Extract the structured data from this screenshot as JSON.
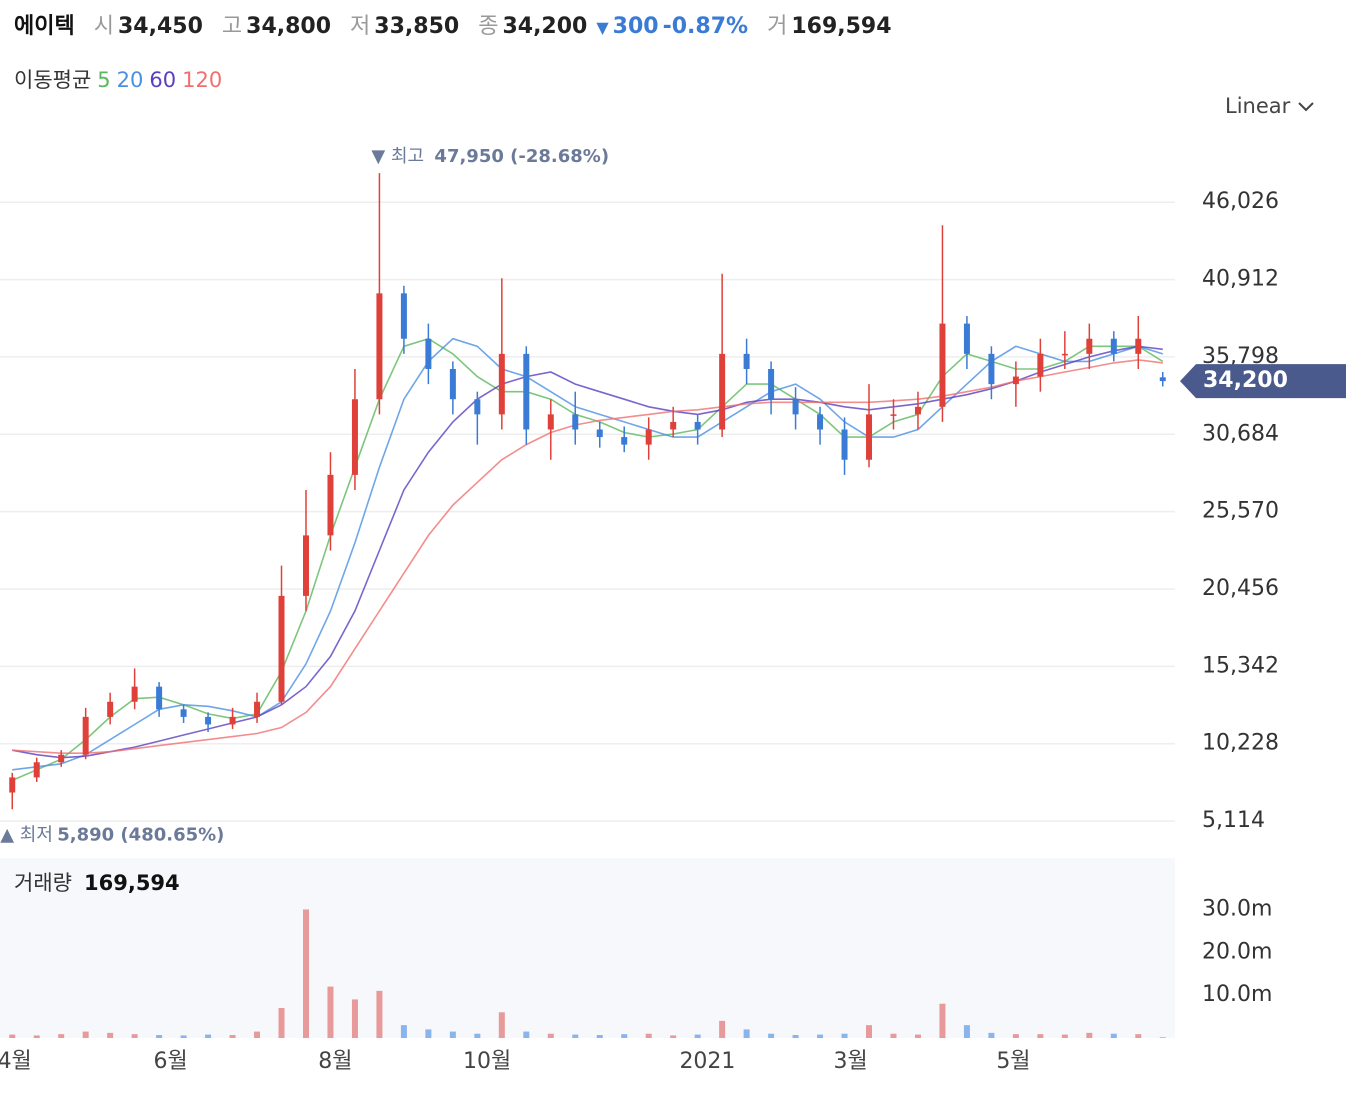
{
  "header": {
    "name": "에이텍",
    "items": [
      {
        "label": "시",
        "value": "34,450"
      },
      {
        "label": "고",
        "value": "34,800"
      },
      {
        "label": "저",
        "value": "33,850"
      },
      {
        "label": "종",
        "value": "34,200"
      }
    ],
    "change_arrow": "▼",
    "change": "300",
    "change_pct": "-0.87%",
    "volume_label": "거",
    "volume": "169,594"
  },
  "ma_legend": {
    "title": "이동평균",
    "periods": [
      "5",
      "20",
      "60",
      "120"
    ]
  },
  "scale_menu": "Linear",
  "chart_data": [
    {
      "type": "candlestick",
      "up_color": "#e0403a",
      "down_color": "#3a7bd5",
      "xlim": [
        0,
        48
      ],
      "xticks": [
        {
          "value": 0.6,
          "label": "4월"
        },
        {
          "value": 6.97,
          "label": "6월"
        },
        {
          "value": 13.7,
          "label": "8월"
        },
        {
          "value": 19.9,
          "label": "10월"
        },
        {
          "value": 28.9,
          "label": "2021"
        },
        {
          "value": 34.75,
          "label": "3월"
        },
        {
          "value": 41.4,
          "label": "5월"
        }
      ],
      "ylim": [
        3200,
        50800
      ],
      "yticks": [
        {
          "value": 5114,
          "label": "5,114"
        },
        {
          "value": 10228,
          "label": "10,228"
        },
        {
          "value": 15342,
          "label": "15,342"
        },
        {
          "value": 20456,
          "label": "20,456"
        },
        {
          "value": 25570,
          "label": "25,570"
        },
        {
          "value": 30684,
          "label": "30,684"
        },
        {
          "value": 35798,
          "label": "35,798"
        },
        {
          "value": 40912,
          "label": "40,912"
        },
        {
          "value": 46026,
          "label": "46,026"
        }
      ],
      "grid": true,
      "open": [
        7000,
        8000,
        9000,
        9500,
        12000,
        13000,
        14000,
        12500,
        12000,
        11500,
        12000,
        13000,
        20000,
        24000,
        28000,
        33000,
        40000,
        37000,
        35000,
        33000,
        32000,
        36000,
        31000,
        32000,
        31000,
        30500,
        30000,
        31000,
        31500,
        31000,
        36000,
        35000,
        33000,
        32000,
        31000,
        29000,
        32000,
        32000,
        32500,
        38000,
        36000,
        34000,
        34500,
        36000,
        36000,
        37000,
        36000,
        34450
      ],
      "high": [
        8300,
        9300,
        9800,
        12600,
        13600,
        15200,
        14300,
        12800,
        12300,
        12600,
        13600,
        22000,
        27000,
        29500,
        35000,
        47950,
        40500,
        38000,
        35500,
        33500,
        41000,
        36500,
        33000,
        33500,
        31500,
        31200,
        31800,
        32500,
        32000,
        41300,
        37000,
        35500,
        33800,
        32500,
        31800,
        34000,
        33000,
        33500,
        44500,
        38500,
        36500,
        35500,
        37000,
        37500,
        38000,
        37500,
        38500,
        34800
      ],
      "low": [
        5890,
        7700,
        8700,
        9200,
        11500,
        12500,
        12000,
        11600,
        11000,
        11200,
        11600,
        12800,
        19000,
        23000,
        27000,
        32000,
        36000,
        34000,
        32000,
        30000,
        31000,
        30000,
        29000,
        30000,
        29800,
        29500,
        29000,
        30500,
        30000,
        30500,
        34000,
        32000,
        31000,
        30000,
        28000,
        28500,
        31000,
        31000,
        31500,
        35000,
        33000,
        32500,
        33500,
        35000,
        35000,
        35500,
        35000,
        33850
      ],
      "close": [
        8000,
        9000,
        9500,
        12000,
        13000,
        14000,
        12500,
        12000,
        11500,
        12000,
        13000,
        20000,
        24000,
        28000,
        33000,
        40000,
        37000,
        35000,
        33000,
        32000,
        36000,
        31000,
        32000,
        31000,
        30500,
        30000,
        31000,
        31500,
        31000,
        36000,
        35000,
        33000,
        32000,
        31000,
        29000,
        32000,
        32000,
        32500,
        38000,
        36000,
        34000,
        34500,
        36000,
        36000,
        37000,
        36000,
        37000,
        34200
      ],
      "series": [
        {
          "name": "5",
          "color": "#5cb85c",
          "values": [
            7800,
            8500,
            9200,
            10500,
            12000,
            13200,
            13300,
            12800,
            12200,
            11900,
            12200,
            15000,
            19000,
            24000,
            28500,
            33000,
            36500,
            37000,
            36000,
            34500,
            33500,
            33500,
            33000,
            32000,
            31500,
            30800,
            30500,
            30700,
            31000,
            32500,
            34000,
            34000,
            33000,
            32000,
            30500,
            30500,
            31500,
            32000,
            34500,
            36000,
            35500,
            35000,
            35000,
            35500,
            36500,
            36500,
            36500,
            35500
          ]
        },
        {
          "name": "20",
          "color": "#4a90e2",
          "values": [
            8500,
            8700,
            8900,
            9500,
            10500,
            11500,
            12500,
            12800,
            12700,
            12400,
            12000,
            13000,
            15500,
            19000,
            23500,
            28500,
            33000,
            35500,
            37000,
            36500,
            35000,
            34500,
            33500,
            32500,
            32000,
            31500,
            31000,
            30500,
            30500,
            31500,
            32500,
            33500,
            34000,
            33000,
            31500,
            30500,
            30500,
            31000,
            32500,
            34000,
            35500,
            36500,
            36000,
            35500,
            35500,
            36000,
            36500,
            36000
          ]
        },
        {
          "name": "60",
          "color": "#5a3fc0",
          "values": [
            9800,
            9500,
            9300,
            9400,
            9700,
            10000,
            10400,
            10800,
            11200,
            11600,
            12000,
            12800,
            14000,
            16000,
            19000,
            23000,
            27000,
            29500,
            31500,
            33000,
            34000,
            34500,
            34800,
            34000,
            33500,
            33000,
            32500,
            32200,
            32000,
            32300,
            32800,
            33000,
            33000,
            32800,
            32500,
            32300,
            32500,
            32700,
            33000,
            33300,
            33700,
            34200,
            34800,
            35300,
            35800,
            36200,
            36500,
            36300
          ]
        },
        {
          "name": "120",
          "color": "#f07070",
          "values": [
            9800,
            9700,
            9600,
            9600,
            9700,
            9900,
            10100,
            10300,
            10500,
            10700,
            10900,
            11300,
            12300,
            14000,
            16500,
            19000,
            21500,
            24000,
            26000,
            27500,
            29000,
            30000,
            30800,
            31300,
            31600,
            31800,
            32000,
            32200,
            32300,
            32500,
            32700,
            32800,
            32800,
            32800,
            32800,
            32800,
            32900,
            33000,
            33200,
            33500,
            33800,
            34200,
            34500,
            34800,
            35100,
            35400,
            35600,
            35400
          ]
        }
      ],
      "annotations": {
        "high": {
          "label": "▼ 최고",
          "value": 47950,
          "text": "47,950 (-28.68%)"
        },
        "low": {
          "label": "▲ 최저",
          "value": 5890,
          "text": "5,890 (480.65%)"
        }
      },
      "price_tag": {
        "value": 34200,
        "label": "34,200"
      }
    },
    {
      "type": "bar",
      "title": "거래량",
      "title_value": "169,594",
      "color_up": "#e89a9a",
      "color_down": "#8ab4ec",
      "ylim": [
        0,
        42000000
      ],
      "yticks": [
        {
          "value": 10000000,
          "label": "10.0m"
        },
        {
          "value": 20000000,
          "label": "20.0m"
        },
        {
          "value": 30000000,
          "label": "30.0m"
        }
      ],
      "values": [
        800000,
        600000,
        900000,
        1500000,
        1200000,
        900000,
        700000,
        600000,
        800000,
        700000,
        1500000,
        7000000,
        30000000,
        12000000,
        9000000,
        11000000,
        3000000,
        2000000,
        1500000,
        1000000,
        6000000,
        1500000,
        1000000,
        800000,
        700000,
        900000,
        1000000,
        600000,
        800000,
        4000000,
        2000000,
        1000000,
        700000,
        800000,
        1000000,
        3000000,
        1000000,
        800000,
        8000000,
        3000000,
        1200000,
        900000,
        900000,
        800000,
        1200000,
        1000000,
        900000,
        169594
      ]
    }
  ]
}
